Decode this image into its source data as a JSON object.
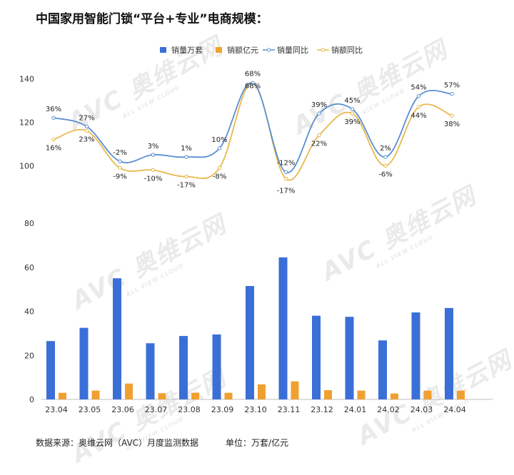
{
  "title": "中国家用智能门锁“平台+专业”电商规模：",
  "footer": {
    "source": "数据来源：奥维云网（AVC）月度监测数据",
    "unit": "单位：万套/亿元"
  },
  "watermark": {
    "brand": "AVC 奥维云网",
    "sub": "ALL VIEW CLOUD"
  },
  "legend": [
    {
      "name": "销量万套",
      "kind": "bar",
      "color": "#3b6fd8"
    },
    {
      "name": "销额亿元",
      "kind": "bar",
      "color": "#f0a030"
    },
    {
      "name": "销量同比",
      "kind": "line",
      "color": "#5b8fd0"
    },
    {
      "name": "销额同比",
      "kind": "line",
      "color": "#e8b84a"
    }
  ],
  "chart_data": [
    {
      "type": "line",
      "categories": [
        "23.04",
        "23.05",
        "23.06",
        "23.07",
        "23.08",
        "23.09",
        "23.10",
        "23.11",
        "23.12",
        "24.01",
        "24.02",
        "24.03",
        "24.04"
      ],
      "yticks": [
        100,
        120,
        140
      ],
      "ylim": [
        86,
        145
      ],
      "series": [
        {
          "name": "销量同比",
          "color": "#5b8fd0",
          "values": [
            122,
            118,
            102,
            105,
            104,
            108,
            138,
            97,
            124,
            126,
            104,
            132,
            133
          ],
          "labels": [
            "36%",
            "27%",
            "-2%",
            "3%",
            "1%",
            "10%",
            "68%",
            "-12%",
            "39%",
            "45%",
            "2%",
            "54%",
            "57%"
          ]
        },
        {
          "name": "销额同比",
          "color": "#e8b84a",
          "values": [
            112,
            116,
            99,
            98,
            95,
            99,
            138,
            94,
            114,
            124,
            100,
            127,
            123
          ],
          "labels": [
            "16%",
            "23%",
            "-9%",
            "-10%",
            "-17%",
            "-8%",
            "68%",
            "-17%",
            "22%",
            "39%",
            "-6%",
            "44%",
            "38%"
          ]
        }
      ]
    },
    {
      "type": "bar",
      "categories": [
        "23.04",
        "23.05",
        "23.06",
        "23.07",
        "23.08",
        "23.09",
        "23.10",
        "23.11",
        "23.12",
        "24.01",
        "24.02",
        "24.03",
        "24.04"
      ],
      "yticks": [
        0,
        20,
        40,
        60,
        80
      ],
      "ylim": [
        0,
        80
      ],
      "series": [
        {
          "name": "销量万套",
          "color": "#3b6fd8",
          "values": [
            26.5,
            32.5,
            55,
            25.5,
            28.8,
            29.5,
            51.5,
            64.5,
            38,
            37.5,
            26.8,
            39.5,
            41.5
          ]
        },
        {
          "name": "销额亿元",
          "color": "#f0a030",
          "values": [
            3.0,
            4.0,
            7.2,
            2.8,
            3.0,
            3.0,
            6.8,
            8.2,
            4.2,
            4.0,
            2.7,
            4.0,
            4.0
          ]
        }
      ]
    }
  ]
}
